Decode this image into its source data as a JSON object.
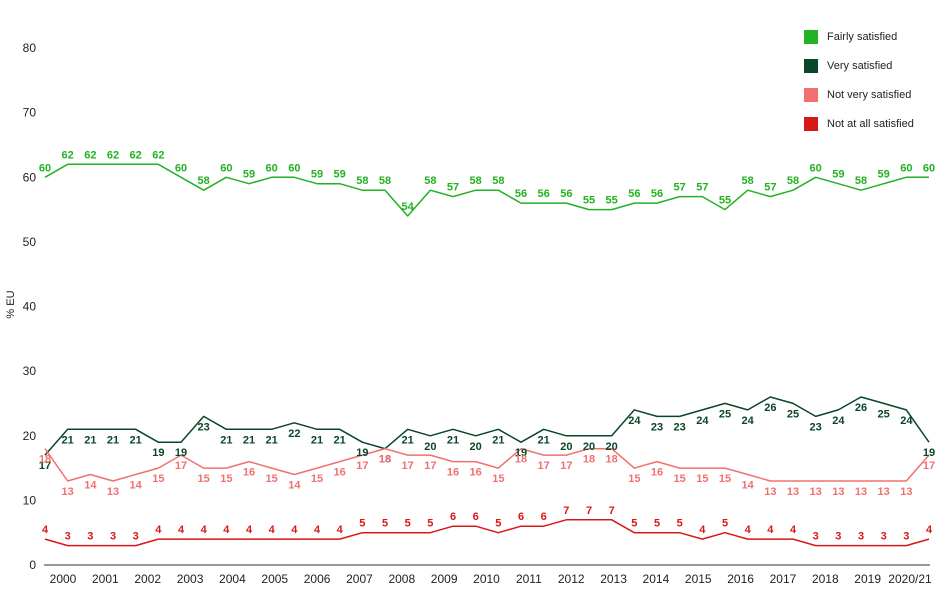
{
  "chart_data": {
    "type": "line",
    "ylabel": "% EU",
    "xlabel": "",
    "ylim": [
      0,
      80
    ],
    "yticks": [
      0,
      10,
      20,
      30,
      40,
      50,
      60,
      70,
      80
    ],
    "grid": false,
    "legend_position": "top-right",
    "x_tick_labels": [
      "2000",
      "2001",
      "2002",
      "2003",
      "2004",
      "2005",
      "2006",
      "2007",
      "2008",
      "2009",
      "2010",
      "2011",
      "2012",
      "2013",
      "2014",
      "2015",
      "2016",
      "2017",
      "2018",
      "2019",
      "2020/21"
    ],
    "series": [
      {
        "name": "Fairly satisfied",
        "color": "#22b222",
        "values": [
          60,
          62,
          62,
          62,
          62,
          62,
          60,
          58,
          60,
          59,
          60,
          60,
          59,
          59,
          58,
          58,
          54,
          58,
          57,
          58,
          58,
          56,
          56,
          56,
          55,
          55,
          56,
          56,
          57,
          57,
          55,
          58,
          57,
          58,
          60,
          59,
          58,
          59,
          60,
          60
        ]
      },
      {
        "name": "Very satisfied",
        "color": "#0a4628",
        "values": [
          17,
          21,
          21,
          21,
          21,
          19,
          19,
          23,
          21,
          21,
          21,
          22,
          21,
          21,
          19,
          18,
          21,
          20,
          21,
          20,
          21,
          19,
          21,
          20,
          20,
          20,
          24,
          23,
          23,
          24,
          25,
          24,
          26,
          25,
          23,
          24,
          26,
          25,
          24,
          19
        ]
      },
      {
        "name": "Not very satisfied",
        "color": "#f07070",
        "values": [
          18,
          13,
          14,
          13,
          14,
          15,
          17,
          15,
          15,
          16,
          15,
          14,
          15,
          16,
          17,
          18,
          17,
          17,
          16,
          16,
          15,
          18,
          17,
          17,
          18,
          18,
          15,
          16,
          15,
          15,
          15,
          14,
          13,
          13,
          13,
          13,
          13,
          13,
          13,
          17
        ]
      },
      {
        "name": "Not at all satisfied",
        "color": "#d81818",
        "values": [
          4,
          3,
          3,
          3,
          3,
          4,
          4,
          4,
          4,
          4,
          4,
          4,
          4,
          4,
          5,
          5,
          5,
          5,
          6,
          6,
          5,
          6,
          6,
          7,
          7,
          7,
          5,
          5,
          5,
          4,
          5,
          4,
          4,
          4,
          3,
          3,
          3,
          3,
          3,
          4
        ]
      }
    ]
  }
}
